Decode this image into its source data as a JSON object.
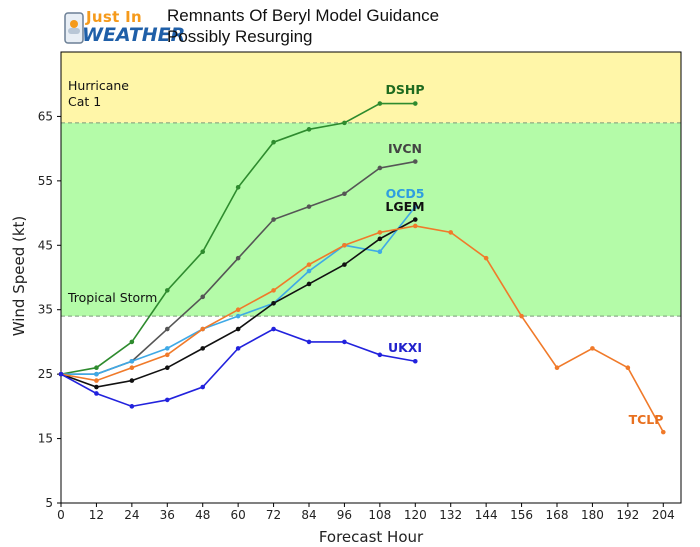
{
  "header": {
    "logo_top": "Just In",
    "logo_bottom": "WEATHER",
    "title_line1": "Remnants Of Beryl Model Guidance",
    "title_line2": "Possibly Resurging"
  },
  "chart_data": {
    "type": "line",
    "xlabel": "Forecast Hour",
    "ylabel": "Wind Speed (kt)",
    "xlim": [
      0,
      210
    ],
    "ylim": [
      5,
      75
    ],
    "x_ticks": [
      0,
      12,
      24,
      36,
      48,
      60,
      72,
      84,
      96,
      108,
      120,
      132,
      144,
      156,
      168,
      180,
      192,
      204
    ],
    "y_ticks": [
      5,
      15,
      25,
      35,
      45,
      55,
      65
    ],
    "bands": [
      {
        "label": "Hurricane",
        "sublabel": "Cat 1",
        "from": 64,
        "to": 75,
        "color": "#fff6a8"
      },
      {
        "label": "Tropical Storm",
        "sublabel": "",
        "from": 34,
        "to": 64,
        "color": "#b4fba8"
      }
    ],
    "threshold_lines": [
      34,
      64
    ],
    "grid": false,
    "series": [
      {
        "name": "DSHP",
        "color": "#2e8b2e",
        "label_color": "#1f6b1f",
        "x": [
          0,
          12,
          24,
          36,
          48,
          60,
          72,
          84,
          96,
          108,
          120
        ],
        "y": [
          25,
          26,
          30,
          38,
          44,
          54,
          61,
          63,
          64,
          67,
          67
        ]
      },
      {
        "name": "IVCN",
        "color": "#555555",
        "label_color": "#444444",
        "x": [
          0,
          12,
          24,
          36,
          48,
          60,
          72,
          84,
          96,
          108,
          120
        ],
        "y": [
          25,
          25,
          27,
          32,
          37,
          43,
          49,
          51,
          53,
          57,
          58
        ]
      },
      {
        "name": "OCD5",
        "color": "#3fa9e6",
        "label_color": "#2e9ee0",
        "x": [
          0,
          12,
          24,
          36,
          48,
          60,
          72,
          84,
          96,
          108,
          120
        ],
        "y": [
          25,
          25,
          27,
          29,
          32,
          34,
          36,
          41,
          45,
          44,
          51
        ]
      },
      {
        "name": "LGEM",
        "color": "#111111",
        "label_color": "#111111",
        "x": [
          0,
          12,
          24,
          36,
          48,
          60,
          72,
          84,
          96,
          108,
          120
        ],
        "y": [
          25,
          23,
          24,
          26,
          29,
          32,
          36,
          39,
          42,
          46,
          49
        ]
      },
      {
        "name": "TCLP",
        "color": "#f07a2a",
        "label_color": "#e8701f",
        "x": [
          0,
          12,
          24,
          36,
          48,
          60,
          72,
          84,
          96,
          108,
          120,
          132,
          144,
          156,
          168,
          180,
          192,
          204
        ],
        "y": [
          25,
          24,
          26,
          28,
          32,
          35,
          38,
          42,
          45,
          47,
          48,
          47,
          43,
          34,
          26,
          29,
          26,
          16
        ]
      },
      {
        "name": "UKXI",
        "color": "#2222dd",
        "label_color": "#2222cc",
        "x": [
          0,
          12,
          24,
          36,
          48,
          60,
          72,
          84,
          96,
          108,
          120
        ],
        "y": [
          25,
          22,
          20,
          21,
          23,
          29,
          32,
          30,
          30,
          28,
          27
        ]
      }
    ]
  }
}
